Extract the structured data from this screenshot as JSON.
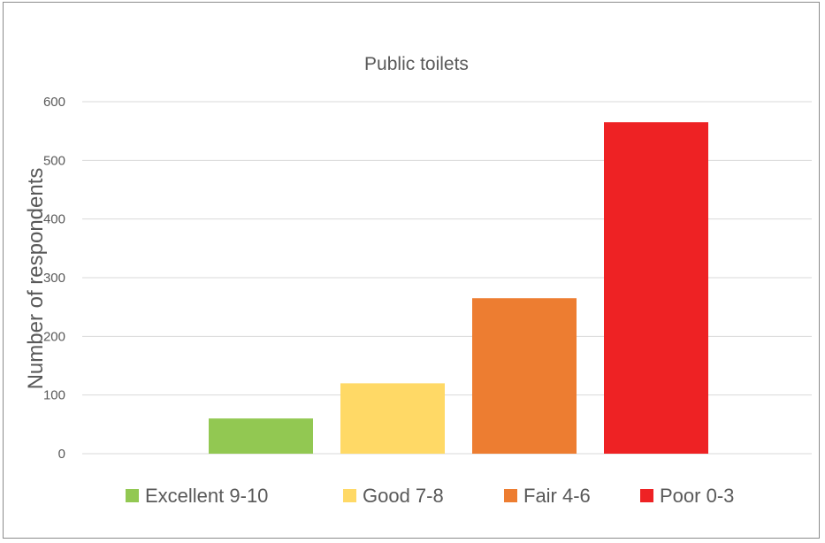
{
  "chart_data": {
    "type": "bar",
    "title": "Public toilets",
    "xlabel": "",
    "ylabel": "Number of respondents",
    "ylim": [
      0,
      600
    ],
    "yticks": [
      0,
      100,
      200,
      300,
      400,
      500,
      600
    ],
    "grid": true,
    "legend_position": "bottom",
    "series": [
      {
        "name": "Excellent 9-10",
        "value": 60,
        "color": "#92c852"
      },
      {
        "name": "Good 7-8",
        "value": 120,
        "color": "#ffd966"
      },
      {
        "name": "Fair 4-6",
        "value": 265,
        "color": "#ed7d31"
      },
      {
        "name": "Poor 0-3",
        "value": 565,
        "color": "#ee2224"
      }
    ]
  }
}
